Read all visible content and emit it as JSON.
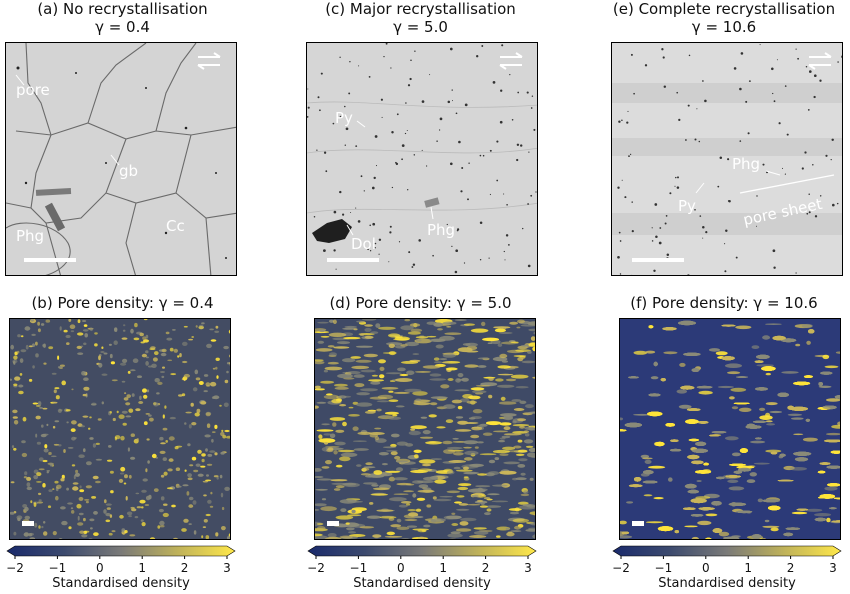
{
  "columns": [
    {
      "top_title": "(a) No recrystallisation",
      "top_gamma": "γ = 0.4",
      "density_title": "(b) Pore density: γ = 0.4",
      "labels": [
        "pore",
        "gb",
        "Phg",
        "Cc"
      ]
    },
    {
      "top_title": "(c) Major recrystallisation",
      "top_gamma": "γ = 5.0",
      "density_title": "(d) Pore density: γ = 5.0",
      "labels": [
        "Py",
        "Dol",
        "Phg"
      ]
    },
    {
      "top_title": "(e) Complete recrystallisation",
      "top_gamma": "γ = 10.6",
      "density_title": "(f) Pore density: γ = 10.6",
      "labels": [
        "Phg",
        "Py",
        "pore sheet"
      ]
    }
  ],
  "shear_icon": "shear-sense-arrows-icon",
  "colorbar": {
    "label": "Standardised density",
    "ticks": [
      "−2",
      "−1",
      "0",
      "1",
      "2",
      "3"
    ],
    "range": [
      -2,
      3
    ],
    "colors": [
      "#1a2a6c",
      "#3c4a6e",
      "#7a7a78",
      "#bfb25a",
      "#ffe84a"
    ]
  }
}
